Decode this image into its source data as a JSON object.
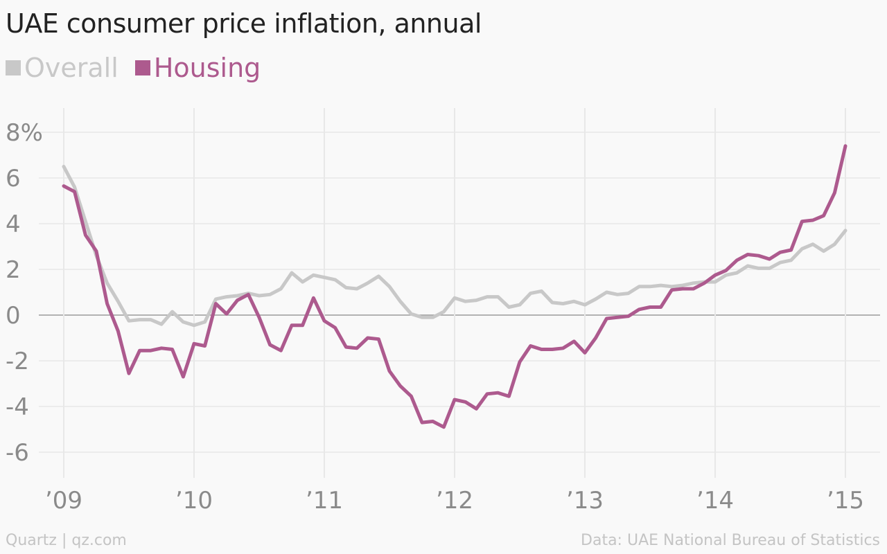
{
  "colors": {
    "overall": "#c8c8c8",
    "housing": "#ad5a8e",
    "grid": "#e8e8e8",
    "zero_line": "#9a9a9a",
    "tick_text": "#8a8a8a",
    "title_text": "#222222"
  },
  "footer": {
    "source_left": "Quartz | qz.com",
    "source_right": "Data: UAE National Bureau of Statistics"
  },
  "chart_data": {
    "type": "line",
    "title": "UAE consumer price inflation, annual",
    "xlabel": "",
    "ylabel": "",
    "ylim": [
      -7,
      9
    ],
    "xlim": [
      2009,
      2015
    ],
    "yticks": [
      8,
      6,
      4,
      2,
      0,
      -2,
      -4,
      -6
    ],
    "ytick_labels": [
      "8%",
      "6",
      "4",
      "2",
      "0",
      "-2",
      "-4",
      "-6"
    ],
    "xticks": [
      2009,
      2010,
      2011,
      2012,
      2013,
      2014,
      2015
    ],
    "xtick_labels": [
      "’09",
      "’10",
      "’11",
      "’12",
      "’13",
      "’14",
      "’15"
    ],
    "grid": true,
    "legend_position": "top-left",
    "series": [
      {
        "name": "Overall",
        "color_key": "overall",
        "x": [
          2009.0,
          2009.083,
          2009.167,
          2009.25,
          2009.333,
          2009.417,
          2009.5,
          2009.583,
          2009.667,
          2009.75,
          2009.833,
          2009.917,
          2010.0,
          2010.083,
          2010.167,
          2010.25,
          2010.333,
          2010.417,
          2010.5,
          2010.583,
          2010.667,
          2010.75,
          2010.833,
          2010.917,
          2011.0,
          2011.083,
          2011.167,
          2011.25,
          2011.333,
          2011.417,
          2011.5,
          2011.583,
          2011.667,
          2011.75,
          2011.833,
          2011.917,
          2012.0,
          2012.083,
          2012.167,
          2012.25,
          2012.333,
          2012.417,
          2012.5,
          2012.583,
          2012.667,
          2012.75,
          2012.833,
          2012.917,
          2013.0,
          2013.083,
          2013.167,
          2013.25,
          2013.333,
          2013.417,
          2013.5,
          2013.583,
          2013.667,
          2013.75,
          2013.833,
          2013.917,
          2014.0,
          2014.083,
          2014.167,
          2014.25,
          2014.333,
          2014.417,
          2014.5,
          2014.583,
          2014.667,
          2014.75,
          2014.833,
          2014.917,
          2015.0
        ],
        "values": [
          6.5,
          5.6,
          4.1,
          2.6,
          1.4,
          0.6,
          -0.25,
          -0.2,
          -0.2,
          -0.4,
          0.15,
          -0.3,
          -0.45,
          -0.3,
          0.7,
          0.8,
          0.85,
          0.95,
          0.85,
          0.9,
          1.15,
          1.85,
          1.45,
          1.75,
          1.65,
          1.55,
          1.2,
          1.15,
          1.4,
          1.7,
          1.25,
          0.6,
          0.05,
          -0.1,
          -0.1,
          0.15,
          0.75,
          0.6,
          0.65,
          0.8,
          0.8,
          0.35,
          0.45,
          0.95,
          1.05,
          0.55,
          0.5,
          0.6,
          0.45,
          0.7,
          1.0,
          0.9,
          0.95,
          1.25,
          1.25,
          1.3,
          1.25,
          1.3,
          1.4,
          1.45,
          1.45,
          1.75,
          1.85,
          2.15,
          2.05,
          2.05,
          2.3,
          2.4,
          2.9,
          3.1,
          2.8,
          3.1,
          3.7
        ]
      },
      {
        "name": "Housing",
        "color_key": "housing",
        "x": [
          2009.0,
          2009.083,
          2009.167,
          2009.25,
          2009.333,
          2009.417,
          2009.5,
          2009.583,
          2009.667,
          2009.75,
          2009.833,
          2009.917,
          2010.0,
          2010.083,
          2010.167,
          2010.25,
          2010.333,
          2010.417,
          2010.5,
          2010.583,
          2010.667,
          2010.75,
          2010.833,
          2010.917,
          2011.0,
          2011.083,
          2011.167,
          2011.25,
          2011.333,
          2011.417,
          2011.5,
          2011.583,
          2011.667,
          2011.75,
          2011.833,
          2011.917,
          2012.0,
          2012.083,
          2012.167,
          2012.25,
          2012.333,
          2012.417,
          2012.5,
          2012.583,
          2012.667,
          2012.75,
          2012.833,
          2012.917,
          2013.0,
          2013.083,
          2013.167,
          2013.25,
          2013.333,
          2013.417,
          2013.5,
          2013.583,
          2013.667,
          2013.75,
          2013.833,
          2013.917,
          2014.0,
          2014.083,
          2014.167,
          2014.25,
          2014.333,
          2014.417,
          2014.5,
          2014.583,
          2014.667,
          2014.75,
          2014.833,
          2014.917,
          2015.0
        ],
        "values": [
          5.65,
          5.4,
          3.5,
          2.8,
          0.5,
          -0.7,
          -2.55,
          -1.55,
          -1.55,
          -1.45,
          -1.5,
          -2.7,
          -1.25,
          -1.35,
          0.5,
          0.05,
          0.65,
          0.9,
          -0.1,
          -1.3,
          -1.55,
          -0.45,
          -0.45,
          0.75,
          -0.25,
          -0.55,
          -1.4,
          -1.45,
          -1.0,
          -1.05,
          -2.45,
          -3.1,
          -3.55,
          -4.7,
          -4.65,
          -4.9,
          -3.7,
          -3.8,
          -4.1,
          -3.45,
          -3.4,
          -3.55,
          -2.05,
          -1.35,
          -1.5,
          -1.5,
          -1.45,
          -1.15,
          -1.65,
          -1.0,
          -0.15,
          -0.1,
          -0.05,
          0.25,
          0.35,
          0.35,
          1.1,
          1.15,
          1.15,
          1.4,
          1.75,
          1.95,
          2.4,
          2.65,
          2.6,
          2.45,
          2.75,
          2.85,
          4.1,
          4.15,
          4.35,
          5.35,
          7.4
        ]
      }
    ]
  }
}
